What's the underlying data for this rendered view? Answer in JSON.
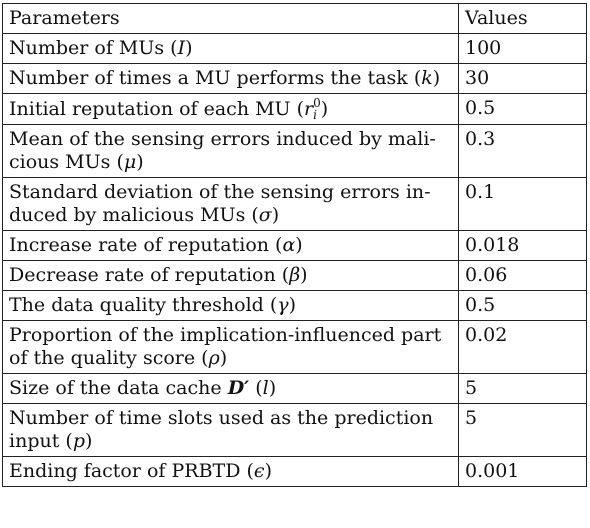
{
  "table": {
    "header": {
      "param": "Parameters",
      "value": "Values"
    },
    "rows": [
      {
        "param": "Number of MUs (I)",
        "value": "100"
      },
      {
        "param": "Number of times a MU performs the task (k)",
        "value": "30"
      },
      {
        "param": "Initial reputation of each MU (r_i^0)",
        "value": "0.5"
      },
      {
        "param": "Mean of the sensing errors induced by malicious MUs (μ)",
        "value": "0.3"
      },
      {
        "param": "Standard deviation of the sensing errors induced by malicious MUs (σ)",
        "value": "0.1"
      },
      {
        "param": "Increase rate of reputation (α)",
        "value": "0.018"
      },
      {
        "param": "Decrease rate of reputation (β)",
        "value": "0.06"
      },
      {
        "param": "The data quality threshold (γ)",
        "value": "0.5"
      },
      {
        "param": "Proportion of the implication-influenced part of the quality score (ρ)",
        "value": "0.02"
      },
      {
        "param": "Size of the data cache D′ (l)",
        "value": "5"
      },
      {
        "param": "Number of time slots used as the prediction input (p)",
        "value": "5"
      },
      {
        "param": "Ending factor of PRBTD (ϵ)",
        "value": "0.001"
      }
    ],
    "display": {
      "r0": {
        "param_prefix": "Number of MUs (",
        "param_sym": "I",
        "param_suffix": ")"
      },
      "r1": {
        "param_prefix": "Number of times a MU performs the task (",
        "param_sym": "k",
        "param_suffix": ")"
      },
      "r2": {
        "param_prefix": "Initial reputation of each MU (",
        "param_sym": "r",
        "param_sup": "0",
        "param_sub": "i",
        "param_suffix": ")"
      },
      "r3": {
        "line1": "Mean of the sensing errors induced by mali-",
        "line2_prefix": "cious MUs (",
        "param_sym": "μ",
        "param_suffix": ")"
      },
      "r4": {
        "line1": "Standard deviation of the sensing errors in-",
        "line2_prefix": "duced by malicious MUs (",
        "param_sym": "σ",
        "param_suffix": ")"
      },
      "r5": {
        "param_prefix": "Increase rate of reputation (",
        "param_sym": "α",
        "param_suffix": ")"
      },
      "r6": {
        "param_prefix": "Decrease rate of reputation (",
        "param_sym": "β",
        "param_suffix": ")"
      },
      "r7": {
        "param_prefix": "The data quality threshold (",
        "param_sym": "γ",
        "param_suffix": ")"
      },
      "r8": {
        "line1": "Proportion of the implication-influenced part",
        "line2_prefix": "of the quality score (",
        "param_sym": "ρ",
        "param_suffix": ")"
      },
      "r9": {
        "param_prefix": "Size of the data cache ",
        "param_bold": "D′",
        "param_mid": " (",
        "param_sym": "l",
        "param_suffix": ")"
      },
      "r10": {
        "line1": "Number of time slots used as the prediction",
        "line2_prefix": "input (",
        "param_sym": "p",
        "param_suffix": ")"
      },
      "r11": {
        "param_prefix": "Ending factor of PRBTD (",
        "param_sym": "ϵ",
        "param_suffix": ")"
      }
    }
  }
}
